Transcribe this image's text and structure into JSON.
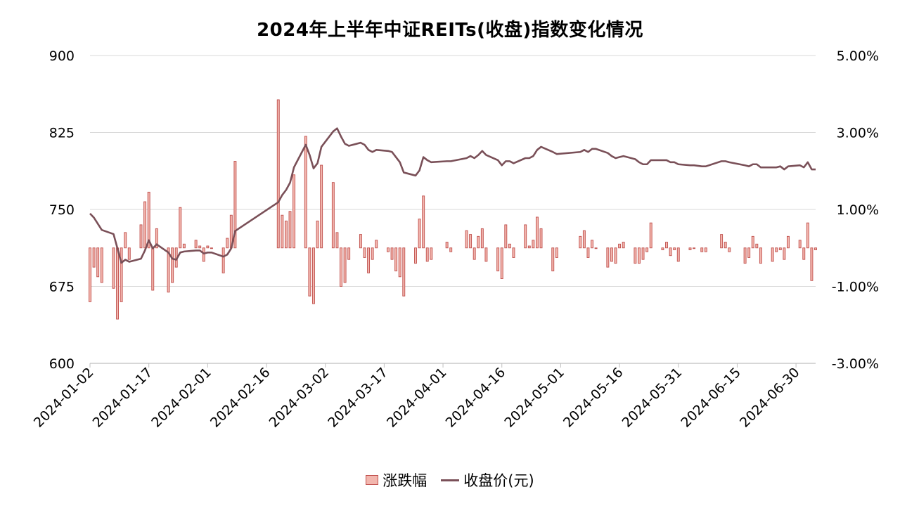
{
  "chart_data": {
    "type": "bar+line",
    "title": "2024年上半年中证REITs(收盘)指数变化情况",
    "legend": {
      "position": "bottom",
      "entries": [
        "涨跌幅",
        "收盘价(元)"
      ]
    },
    "colors": {
      "bar_fill": "#f2b6ae",
      "bar_stroke": "#c0504d",
      "line": "#7a5058",
      "grid": "#d9d9d9",
      "axis": "#bfbfbf"
    },
    "grid": "horizontal",
    "x_axis": {
      "type": "date",
      "range": [
        "2024-01-02",
        "2024-07-05"
      ],
      "tick_labels": [
        "2024-01-02",
        "2024-01-17",
        "2024-02-01",
        "2024-02-16",
        "2024-03-02",
        "2024-03-17",
        "2024-04-01",
        "2024-04-16",
        "2024-05-01",
        "2024-05-16",
        "2024-05-31",
        "2024-06-15",
        "2024-06-30"
      ]
    },
    "y_left": {
      "range": [
        600,
        900
      ],
      "tick_labels": [
        "900",
        "825",
        "750",
        "675",
        "600"
      ]
    },
    "y_right": {
      "range": [
        -3.0,
        5.0
      ],
      "unit": "%",
      "tick_labels": [
        "5.00%",
        "3.00%",
        "1.00%",
        "-1.00%",
        "-3.00%"
      ]
    },
    "series": [
      {
        "name": "涨跌幅",
        "type": "bar",
        "axis": "right",
        "unit": "%",
        "points": [
          [
            "2024-01-02",
            -1.4
          ],
          [
            "2024-01-03",
            -0.5
          ],
          [
            "2024-01-04",
            -0.75
          ],
          [
            "2024-01-05",
            -0.9
          ],
          [
            "2024-01-08",
            -1.05
          ],
          [
            "2024-01-09",
            -1.85
          ],
          [
            "2024-01-10",
            -1.4
          ],
          [
            "2024-01-11",
            0.4
          ],
          [
            "2024-01-12",
            -0.3
          ],
          [
            "2024-01-15",
            0.6
          ],
          [
            "2024-01-16",
            1.2
          ],
          [
            "2024-01-17",
            1.45
          ],
          [
            "2024-01-18",
            -1.1
          ],
          [
            "2024-01-19",
            0.5
          ],
          [
            "2024-01-22",
            -1.15
          ],
          [
            "2024-01-23",
            -0.9
          ],
          [
            "2024-01-24",
            -0.5
          ],
          [
            "2024-01-25",
            1.05
          ],
          [
            "2024-01-26",
            0.1
          ],
          [
            "2024-01-29",
            0.2
          ],
          [
            "2024-01-30",
            0.05
          ],
          [
            "2024-01-31",
            -0.35
          ],
          [
            "2024-02-01",
            0.05
          ],
          [
            "2024-02-02",
            0.0
          ],
          [
            "2024-02-05",
            -0.65
          ],
          [
            "2024-02-06",
            0.25
          ],
          [
            "2024-02-07",
            0.85
          ],
          [
            "2024-02-08",
            2.25
          ],
          [
            "2024-02-19",
            3.85
          ],
          [
            "2024-02-20",
            0.85
          ],
          [
            "2024-02-21",
            0.7
          ],
          [
            "2024-02-22",
            0.95
          ],
          [
            "2024-02-23",
            1.9
          ],
          [
            "2024-02-26",
            2.9
          ],
          [
            "2024-02-27",
            -1.25
          ],
          [
            "2024-02-28",
            -1.45
          ],
          [
            "2024-02-29",
            0.7
          ],
          [
            "2024-03-01",
            2.15
          ],
          [
            "2024-03-04",
            1.7
          ],
          [
            "2024-03-05",
            0.4
          ],
          [
            "2024-03-06",
            -1.0
          ],
          [
            "2024-03-07",
            -0.9
          ],
          [
            "2024-03-08",
            -0.3
          ],
          [
            "2024-03-11",
            0.35
          ],
          [
            "2024-03-12",
            -0.25
          ],
          [
            "2024-03-13",
            -0.65
          ],
          [
            "2024-03-14",
            -0.3
          ],
          [
            "2024-03-15",
            0.2
          ],
          [
            "2024-03-18",
            -0.1
          ],
          [
            "2024-03-19",
            -0.3
          ],
          [
            "2024-03-20",
            -0.6
          ],
          [
            "2024-03-21",
            -0.75
          ],
          [
            "2024-03-22",
            -1.25
          ],
          [
            "2024-03-25",
            -0.4
          ],
          [
            "2024-03-26",
            0.75
          ],
          [
            "2024-03-27",
            1.35
          ],
          [
            "2024-03-28",
            -0.35
          ],
          [
            "2024-03-29",
            -0.3
          ],
          [
            "2024-04-02",
            0.15
          ],
          [
            "2024-04-03",
            -0.1
          ],
          [
            "2024-04-07",
            0.45
          ],
          [
            "2024-04-08",
            0.35
          ],
          [
            "2024-04-09",
            -0.3
          ],
          [
            "2024-04-10",
            0.3
          ],
          [
            "2024-04-11",
            0.5
          ],
          [
            "2024-04-12",
            -0.35
          ],
          [
            "2024-04-15",
            -0.6
          ],
          [
            "2024-04-16",
            -0.8
          ],
          [
            "2024-04-17",
            0.6
          ],
          [
            "2024-04-18",
            0.1
          ],
          [
            "2024-04-19",
            -0.25
          ],
          [
            "2024-04-22",
            0.6
          ],
          [
            "2024-04-23",
            0.05
          ],
          [
            "2024-04-24",
            0.2
          ],
          [
            "2024-04-25",
            0.8
          ],
          [
            "2024-04-26",
            0.5
          ],
          [
            "2024-04-29",
            -0.6
          ],
          [
            "2024-04-30",
            -0.25
          ],
          [
            "2024-05-06",
            0.3
          ],
          [
            "2024-05-07",
            0.45
          ],
          [
            "2024-05-08",
            -0.25
          ],
          [
            "2024-05-09",
            0.2
          ],
          [
            "2024-05-10",
            0.0
          ],
          [
            "2024-05-13",
            -0.5
          ],
          [
            "2024-05-14",
            -0.35
          ],
          [
            "2024-05-15",
            -0.4
          ],
          [
            "2024-05-16",
            0.1
          ],
          [
            "2024-05-17",
            0.15
          ],
          [
            "2024-05-20",
            -0.4
          ],
          [
            "2024-05-21",
            -0.4
          ],
          [
            "2024-05-22",
            -0.3
          ],
          [
            "2024-05-23",
            -0.1
          ],
          [
            "2024-05-24",
            0.65
          ],
          [
            "2024-05-27",
            -0.05
          ],
          [
            "2024-05-28",
            0.15
          ],
          [
            "2024-05-29",
            -0.2
          ],
          [
            "2024-05-30",
            -0.05
          ],
          [
            "2024-05-31",
            -0.35
          ],
          [
            "2024-06-03",
            -0.05
          ],
          [
            "2024-06-04",
            0.0
          ],
          [
            "2024-06-06",
            -0.1
          ],
          [
            "2024-06-07",
            -0.1
          ],
          [
            "2024-06-11",
            0.35
          ],
          [
            "2024-06-12",
            0.15
          ],
          [
            "2024-06-13",
            -0.1
          ],
          [
            "2024-06-17",
            -0.4
          ],
          [
            "2024-06-18",
            -0.25
          ],
          [
            "2024-06-19",
            0.3
          ],
          [
            "2024-06-20",
            0.1
          ],
          [
            "2024-06-21",
            -0.4
          ],
          [
            "2024-06-24",
            -0.35
          ],
          [
            "2024-06-25",
            -0.1
          ],
          [
            "2024-06-26",
            -0.05
          ],
          [
            "2024-06-27",
            -0.3
          ],
          [
            "2024-06-28",
            0.3
          ],
          [
            "2024-07-01",
            0.2
          ],
          [
            "2024-07-02",
            -0.3
          ],
          [
            "2024-07-03",
            0.65
          ],
          [
            "2024-07-04",
            -0.85
          ],
          [
            "2024-07-05",
            -0.05
          ]
        ]
      },
      {
        "name": "收盘价(元)",
        "type": "line",
        "axis": "left",
        "points": [
          [
            "2024-01-02",
            746
          ],
          [
            "2024-01-03",
            742
          ],
          [
            "2024-01-04",
            736
          ],
          [
            "2024-01-05",
            730
          ],
          [
            "2024-01-08",
            726
          ],
          [
            "2024-01-09",
            712
          ],
          [
            "2024-01-10",
            698
          ],
          [
            "2024-01-11",
            701
          ],
          [
            "2024-01-12",
            699
          ],
          [
            "2024-01-15",
            702
          ],
          [
            "2024-01-16",
            710
          ],
          [
            "2024-01-17",
            720
          ],
          [
            "2024-01-18",
            712
          ],
          [
            "2024-01-19",
            716
          ],
          [
            "2024-01-22",
            708
          ],
          [
            "2024-01-23",
            702
          ],
          [
            "2024-01-24",
            701
          ],
          [
            "2024-01-25",
            708
          ],
          [
            "2024-01-26",
            709
          ],
          [
            "2024-01-29",
            710
          ],
          [
            "2024-01-30",
            710
          ],
          [
            "2024-01-31",
            707
          ],
          [
            "2024-02-01",
            708
          ],
          [
            "2024-02-02",
            708
          ],
          [
            "2024-02-05",
            704
          ],
          [
            "2024-02-06",
            706
          ],
          [
            "2024-02-07",
            712
          ],
          [
            "2024-02-08",
            729
          ],
          [
            "2024-02-19",
            757
          ],
          [
            "2024-02-20",
            764
          ],
          [
            "2024-02-21",
            769
          ],
          [
            "2024-02-22",
            776
          ],
          [
            "2024-02-23",
            791
          ],
          [
            "2024-02-26",
            813
          ],
          [
            "2024-02-27",
            803
          ],
          [
            "2024-02-28",
            790
          ],
          [
            "2024-02-29",
            795
          ],
          [
            "2024-03-01",
            811
          ],
          [
            "2024-03-04",
            826
          ],
          [
            "2024-03-05",
            829
          ],
          [
            "2024-03-06",
            821
          ],
          [
            "2024-03-07",
            814
          ],
          [
            "2024-03-08",
            812
          ],
          [
            "2024-03-11",
            815
          ],
          [
            "2024-03-12",
            813
          ],
          [
            "2024-03-13",
            808
          ],
          [
            "2024-03-14",
            806
          ],
          [
            "2024-03-15",
            808
          ],
          [
            "2024-03-18",
            807
          ],
          [
            "2024-03-19",
            806
          ],
          [
            "2024-03-20",
            801
          ],
          [
            "2024-03-21",
            796
          ],
          [
            "2024-03-22",
            786
          ],
          [
            "2024-03-25",
            783
          ],
          [
            "2024-03-26",
            788
          ],
          [
            "2024-03-27",
            801
          ],
          [
            "2024-03-28",
            798
          ],
          [
            "2024-03-29",
            796
          ],
          [
            "2024-04-02",
            797
          ],
          [
            "2024-04-03",
            797
          ],
          [
            "2024-04-07",
            800
          ],
          [
            "2024-04-08",
            802
          ],
          [
            "2024-04-09",
            800
          ],
          [
            "2024-04-10",
            803
          ],
          [
            "2024-04-11",
            807
          ],
          [
            "2024-04-12",
            803
          ],
          [
            "2024-04-15",
            798
          ],
          [
            "2024-04-16",
            793
          ],
          [
            "2024-04-17",
            797
          ],
          [
            "2024-04-18",
            797
          ],
          [
            "2024-04-19",
            795
          ],
          [
            "2024-04-22",
            800
          ],
          [
            "2024-04-23",
            800
          ],
          [
            "2024-04-24",
            802
          ],
          [
            "2024-04-25",
            808
          ],
          [
            "2024-04-26",
            811
          ],
          [
            "2024-04-29",
            806
          ],
          [
            "2024-04-30",
            804
          ],
          [
            "2024-05-06",
            806
          ],
          [
            "2024-05-07",
            808
          ],
          [
            "2024-05-08",
            806
          ],
          [
            "2024-05-09",
            809
          ],
          [
            "2024-05-10",
            809
          ],
          [
            "2024-05-13",
            805
          ],
          [
            "2024-05-14",
            802
          ],
          [
            "2024-05-15",
            800
          ],
          [
            "2024-05-16",
            801
          ],
          [
            "2024-05-17",
            802
          ],
          [
            "2024-05-20",
            799
          ],
          [
            "2024-05-21",
            796
          ],
          [
            "2024-05-22",
            794
          ],
          [
            "2024-05-23",
            794
          ],
          [
            "2024-05-24",
            798
          ],
          [
            "2024-05-27",
            798
          ],
          [
            "2024-05-28",
            798
          ],
          [
            "2024-05-29",
            796
          ],
          [
            "2024-05-30",
            796
          ],
          [
            "2024-05-31",
            794
          ],
          [
            "2024-06-03",
            793
          ],
          [
            "2024-06-04",
            793
          ],
          [
            "2024-06-06",
            792
          ],
          [
            "2024-06-07",
            792
          ],
          [
            "2024-06-11",
            797
          ],
          [
            "2024-06-12",
            797
          ],
          [
            "2024-06-13",
            796
          ],
          [
            "2024-06-17",
            793
          ],
          [
            "2024-06-18",
            792
          ],
          [
            "2024-06-19",
            794
          ],
          [
            "2024-06-20",
            794
          ],
          [
            "2024-06-21",
            791
          ],
          [
            "2024-06-24",
            791
          ],
          [
            "2024-06-25",
            791
          ],
          [
            "2024-06-26",
            792
          ],
          [
            "2024-06-27",
            789
          ],
          [
            "2024-06-28",
            792
          ],
          [
            "2024-07-01",
            793
          ],
          [
            "2024-07-02",
            791
          ],
          [
            "2024-07-03",
            796
          ],
          [
            "2024-07-04",
            789
          ],
          [
            "2024-07-05",
            789
          ]
        ]
      }
    ]
  }
}
